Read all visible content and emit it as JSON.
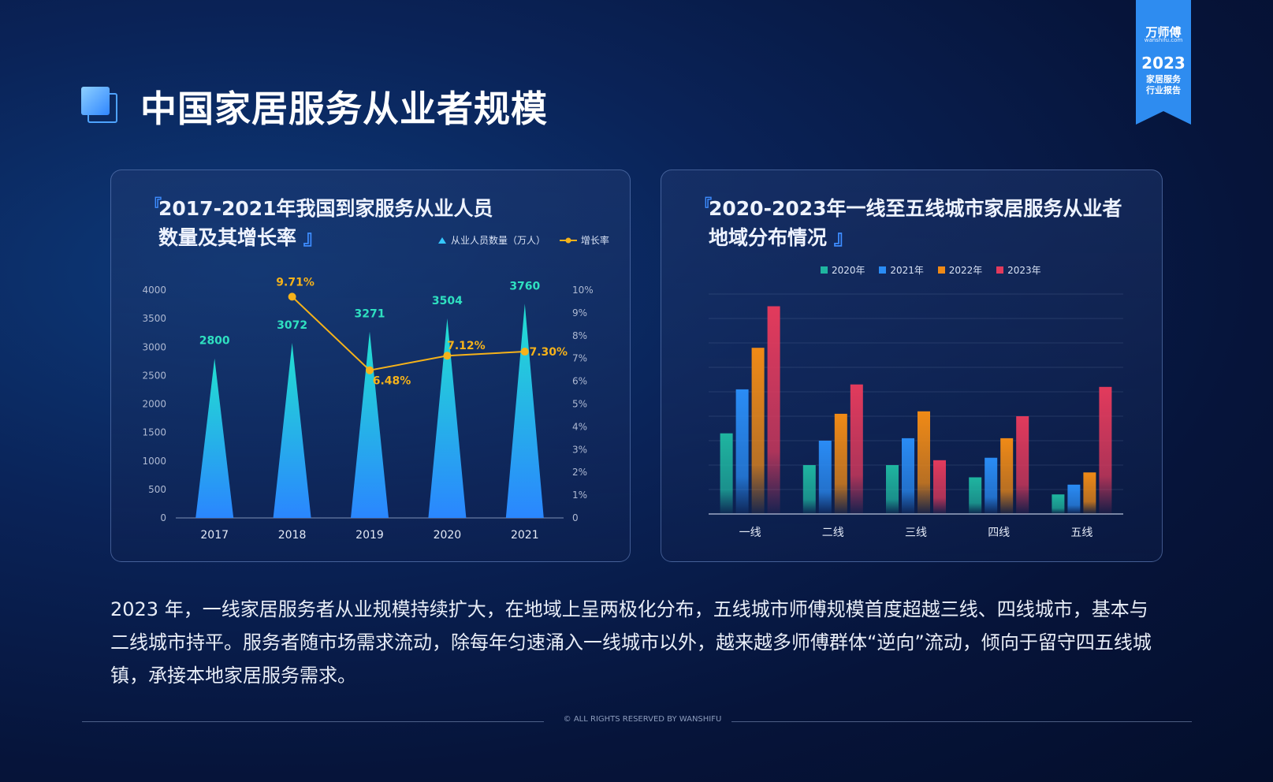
{
  "page": {
    "title": "中国家居服务从业者规模",
    "ribbon": {
      "brand": "万师傅",
      "brand_url": "wanshifu.com",
      "year": "2023",
      "line1": "家居服务",
      "line2": "行业报告"
    },
    "description": "2023 年，一线家居服务者从业规模持续扩大，在地域上呈两极化分布，五线城市师傅规模首度超越三线、四线城市，基本与二线城市持平。服务者随市场需求流动，除每年匀速涌入一线城市以外，越来越多师傅群体“逆向”流动，倾向于留守四五线城镇，承接本地家居服务需求。",
    "footer": "© ALL RIGHTS RESERVED BY WANSHIFU"
  },
  "colors": {
    "accent": "#3d8cff",
    "cone_top": "#22e0d0",
    "cone_bottom": "#2a86ff",
    "line": "#f5b21a",
    "value_label": "#2fe0c0"
  },
  "chart_data": [
    {
      "type": "bar",
      "title_line1": "2017-2021年我国到家服务从业人员",
      "title_line2": "数量及其增长率",
      "categories": [
        "2017",
        "2018",
        "2019",
        "2020",
        "2021"
      ],
      "series": [
        {
          "name": "从业人员数量（万人）",
          "values": [
            2800,
            3072,
            3271,
            3504,
            3760
          ],
          "labels": [
            "2800",
            "3072",
            "3271",
            "3504",
            "3760"
          ],
          "axis": "left"
        },
        {
          "name": "增长率",
          "type": "line",
          "values": [
            null,
            9.71,
            6.48,
            7.12,
            7.3
          ],
          "labels": [
            "",
            "9.71%",
            "6.48%",
            "7.12%",
            "7.30%"
          ],
          "axis": "right"
        }
      ],
      "ylim": [
        0,
        4000
      ],
      "yticks": [
        "0",
        "500",
        "1000",
        "1500",
        "2000",
        "2500",
        "3000",
        "3500",
        "4000"
      ],
      "y2lim": [
        0,
        10
      ],
      "y2ticks": [
        "0",
        "1%",
        "2%",
        "3%",
        "4%",
        "5%",
        "6%",
        "7%",
        "8%",
        "9%",
        "10%"
      ],
      "legend": "top-right"
    },
    {
      "type": "bar",
      "title_line1": "2020-2023年一线至五线城市家居服务从业者",
      "title_line2": "地域分布情况",
      "categories": [
        "一线",
        "二线",
        "三线",
        "四线",
        "五线"
      ],
      "series": [
        {
          "name": "2020年",
          "color": "#1fb5a0",
          "values": [
            33,
            20,
            20,
            15,
            8
          ]
        },
        {
          "name": "2021年",
          "color": "#2a8cf5",
          "values": [
            51,
            30,
            31,
            23,
            12
          ]
        },
        {
          "name": "2022年",
          "color": "#f08a16",
          "values": [
            68,
            41,
            42,
            31,
            17
          ]
        },
        {
          "name": "2023年",
          "color": "#e23a5c",
          "values": [
            85,
            53,
            22,
            40,
            52
          ]
        }
      ],
      "ylim": [
        0,
        90
      ],
      "legend": "top-center",
      "grid": true
    }
  ]
}
